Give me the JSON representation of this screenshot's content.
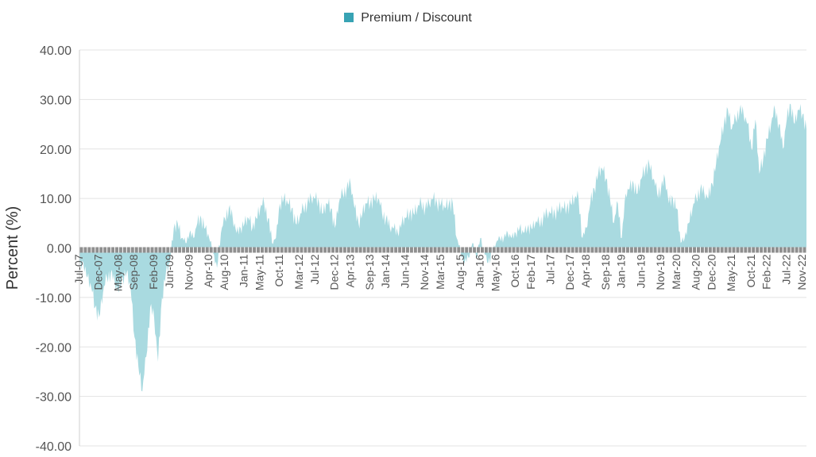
{
  "legend": {
    "label": "Premium / Discount"
  },
  "colors": {
    "area_fill": "#a9dae0",
    "legend_swatch": "#38a3b4",
    "zero_band": "#8f8f8f",
    "grid": "#e3e3e3"
  },
  "chart_data": {
    "type": "area",
    "title": "",
    "xlabel": "",
    "ylabel": "Percent (%)",
    "ylim": [
      -40,
      40
    ],
    "yticks": [
      "40.00",
      "30.00",
      "20.00",
      "10.00",
      "0.00",
      "-10.00",
      "-20.00",
      "-30.00",
      "-40.00"
    ],
    "xticks": [
      "Jul-07",
      "Dec-07",
      "May-08",
      "Sep-08",
      "Feb-09",
      "Jun-09",
      "Nov-09",
      "Apr-10",
      "Aug-10",
      "Jan-11",
      "May-11",
      "Oct-11",
      "Mar-12",
      "Jul-12",
      "Dec-12",
      "Apr-13",
      "Sep-13",
      "Jan-14",
      "Jun-14",
      "Nov-14",
      "Mar-15",
      "Aug-15",
      "Jan-16",
      "May-16",
      "Oct-16",
      "Feb-17",
      "Jul-17",
      "Dec-17",
      "Apr-18",
      "Sep-18",
      "Jan-19",
      "Jun-19",
      "Nov-19",
      "Mar-20",
      "Aug-20",
      "Dec-20",
      "May-21",
      "Oct-21",
      "Feb-22",
      "Jul-22",
      "Nov-22"
    ],
    "grid": true,
    "legend_position": "top-center",
    "series": [
      {
        "name": "Premium / Discount",
        "x": [
          "2007-07",
          "2007-08",
          "2007-09",
          "2007-10",
          "2007-11",
          "2007-12",
          "2008-01",
          "2008-02",
          "2008-03",
          "2008-04",
          "2008-05",
          "2008-06",
          "2008-07",
          "2008-08",
          "2008-09",
          "2008-10",
          "2008-11",
          "2008-12",
          "2009-01",
          "2009-02",
          "2009-03",
          "2009-04",
          "2009-05",
          "2009-06",
          "2009-07",
          "2009-08",
          "2009-09",
          "2009-10",
          "2009-11",
          "2009-12",
          "2010-01",
          "2010-02",
          "2010-03",
          "2010-04",
          "2010-05",
          "2010-06",
          "2010-07",
          "2010-08",
          "2010-09",
          "2010-10",
          "2010-11",
          "2010-12",
          "2011-01",
          "2011-02",
          "2011-03",
          "2011-04",
          "2011-05",
          "2011-06",
          "2011-07",
          "2011-08",
          "2011-09",
          "2011-10",
          "2011-11",
          "2011-12",
          "2012-01",
          "2012-02",
          "2012-03",
          "2012-04",
          "2012-05",
          "2012-06",
          "2012-07",
          "2012-08",
          "2012-09",
          "2012-10",
          "2012-11",
          "2012-12",
          "2013-01",
          "2013-02",
          "2013-03",
          "2013-04",
          "2013-05",
          "2013-06",
          "2013-07",
          "2013-08",
          "2013-09",
          "2013-10",
          "2013-11",
          "2013-12",
          "2014-01",
          "2014-02",
          "2014-03",
          "2014-04",
          "2014-05",
          "2014-06",
          "2014-07",
          "2014-08",
          "2014-09",
          "2014-10",
          "2014-11",
          "2014-12",
          "2015-01",
          "2015-02",
          "2015-03",
          "2015-04",
          "2015-05",
          "2015-06",
          "2015-07",
          "2015-08",
          "2015-09",
          "2015-10",
          "2015-11",
          "2015-12",
          "2016-01",
          "2016-02",
          "2016-03",
          "2016-04",
          "2016-05",
          "2016-06",
          "2016-07",
          "2016-08",
          "2016-09",
          "2016-10",
          "2016-11",
          "2016-12",
          "2017-01",
          "2017-02",
          "2017-03",
          "2017-04",
          "2017-05",
          "2017-06",
          "2017-07",
          "2017-08",
          "2017-09",
          "2017-10",
          "2017-11",
          "2017-12",
          "2018-01",
          "2018-02",
          "2018-03",
          "2018-04",
          "2018-05",
          "2018-06",
          "2018-07",
          "2018-08",
          "2018-09",
          "2018-10",
          "2018-11",
          "2018-12",
          "2019-01",
          "2019-02",
          "2019-03",
          "2019-04",
          "2019-05",
          "2019-06",
          "2019-07",
          "2019-08",
          "2019-09",
          "2019-10",
          "2019-11",
          "2019-12",
          "2020-01",
          "2020-02",
          "2020-03",
          "2020-04",
          "2020-05",
          "2020-06",
          "2020-07",
          "2020-08",
          "2020-09",
          "2020-10",
          "2020-11",
          "2020-12",
          "2021-01",
          "2021-02",
          "2021-03",
          "2021-04",
          "2021-05",
          "2021-06",
          "2021-07",
          "2021-08",
          "2021-09",
          "2021-10",
          "2021-11",
          "2021-12",
          "2022-01",
          "2022-02",
          "2022-03",
          "2022-04",
          "2022-05",
          "2022-06",
          "2022-07",
          "2022-08",
          "2022-09",
          "2022-10",
          "2022-11",
          "2022-12"
        ],
        "values": [
          -4,
          -3,
          -6,
          -8,
          -12,
          -14,
          -9,
          -6,
          -5,
          -7,
          -9,
          -6,
          -5,
          -8,
          -18,
          -24,
          -29,
          -22,
          -12,
          -14,
          -23,
          -10,
          -5,
          -3,
          4,
          5,
          2,
          1,
          3,
          2,
          5,
          6,
          4,
          2,
          -1,
          -4,
          3,
          6,
          8,
          6,
          3,
          4,
          5,
          6,
          4,
          6,
          8,
          9,
          6,
          1,
          2,
          9,
          10,
          9,
          8,
          5,
          6,
          8,
          9,
          10,
          10,
          9,
          7,
          9,
          8,
          4,
          9,
          11,
          12,
          13,
          8,
          5,
          7,
          9,
          9,
          10,
          10,
          7,
          6,
          4,
          4,
          3,
          5,
          6,
          7,
          7,
          8,
          9,
          8,
          9,
          10,
          9,
          9,
          8,
          9,
          9,
          2,
          -1,
          -3,
          -2,
          1,
          -2,
          2,
          -1,
          -3,
          -1,
          1,
          2,
          2,
          3,
          2,
          3,
          4,
          3,
          4,
          4,
          5,
          5,
          6,
          7,
          7,
          7,
          8,
          8,
          8,
          9,
          10,
          10,
          2,
          4,
          9,
          12,
          15,
          16,
          14,
          10,
          5,
          9,
          2,
          11,
          12,
          13,
          11,
          14,
          16,
          17,
          14,
          11,
          12,
          14,
          9,
          10,
          8,
          1,
          2,
          5,
          8,
          10,
          12,
          11,
          10,
          13,
          17,
          21,
          25,
          28,
          24,
          26,
          28,
          27,
          25,
          20,
          26,
          15,
          18,
          22,
          25,
          28,
          25,
          20,
          26,
          29,
          25,
          28,
          27,
          24
        ]
      }
    ]
  }
}
